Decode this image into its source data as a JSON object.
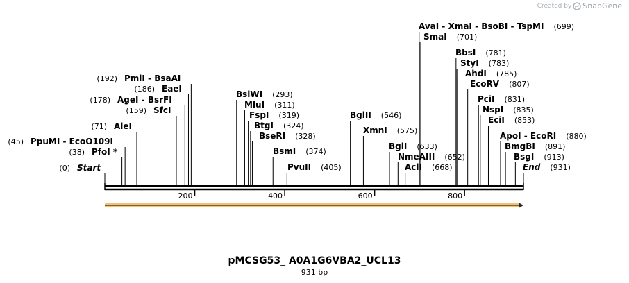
{
  "watermark": {
    "created_by": "Created by",
    "brand": "SnapGene"
  },
  "plasmid": {
    "name": "pMCSG53_ A0A1G6VBA2_UCL13",
    "length_label": "931 bp",
    "length": 931
  },
  "axis": {
    "ticks": [
      "200",
      "400",
      "600",
      "800"
    ],
    "tick_values": [
      200,
      400,
      600,
      800
    ]
  },
  "feature_arrow": {
    "start": 1,
    "end": 931,
    "color": "#f5c070",
    "direction": "forward"
  },
  "sites": [
    {
      "name": "Start",
      "pos": "(0)",
      "value": 0,
      "italic": true,
      "label_side": "right"
    },
    {
      "name": "PfoI *",
      "pos": "(38)",
      "value": 38,
      "label_side": "right"
    },
    {
      "name": "PpuMI  - EcoO109I",
      "pos": "(45)",
      "value": 45,
      "label_side": "right"
    },
    {
      "name": "AleI",
      "pos": "(71)",
      "value": 71,
      "label_side": "right"
    },
    {
      "name": "SfcI",
      "pos": "(159)",
      "value": 159,
      "label_side": "right"
    },
    {
      "name": "AgeI  - BsrFI",
      "pos": "(178)",
      "value": 178,
      "label_side": "right"
    },
    {
      "name": "EaeI",
      "pos": "(186)",
      "value": 186,
      "label_side": "right"
    },
    {
      "name": "PmlI  - BsaAI",
      "pos": "(192)",
      "value": 192,
      "label_side": "right"
    },
    {
      "name": "BsiWI",
      "pos": "(293)",
      "value": 293,
      "label_side": "left"
    },
    {
      "name": "MluI",
      "pos": "(311)",
      "value": 311,
      "label_side": "left"
    },
    {
      "name": "FspI",
      "pos": "(319)",
      "value": 319,
      "label_side": "left"
    },
    {
      "name": "BtgI",
      "pos": "(324)",
      "value": 324,
      "label_side": "left"
    },
    {
      "name": "BseRI",
      "pos": "(328)",
      "value": 328,
      "label_side": "left"
    },
    {
      "name": "BsmI",
      "pos": "(374)",
      "value": 374,
      "label_side": "left"
    },
    {
      "name": "PvuII",
      "pos": "(405)",
      "value": 405,
      "label_side": "left"
    },
    {
      "name": "BglII",
      "pos": "(546)",
      "value": 546,
      "label_side": "left"
    },
    {
      "name": "XmnI",
      "pos": "(575)",
      "value": 575,
      "label_side": "left"
    },
    {
      "name": "BglI",
      "pos": "(633)",
      "value": 633,
      "label_side": "left"
    },
    {
      "name": "NmeAIII",
      "pos": "(652)",
      "value": 652,
      "label_side": "left"
    },
    {
      "name": "AclI",
      "pos": "(668)",
      "value": 668,
      "label_side": "left"
    },
    {
      "name": "AvaI  - XmaI  - BsoBI  - TspMI",
      "pos": "(699)",
      "value": 699,
      "label_side": "left"
    },
    {
      "name": "SmaI",
      "pos": "(701)",
      "value": 701,
      "label_side": "left"
    },
    {
      "name": "BbsI",
      "pos": "(781)",
      "value": 781,
      "label_side": "left"
    },
    {
      "name": "StyI",
      "pos": "(783)",
      "value": 783,
      "label_side": "left"
    },
    {
      "name": "AhdI",
      "pos": "(785)",
      "value": 785,
      "label_side": "left"
    },
    {
      "name": "EcoRV",
      "pos": "(807)",
      "value": 807,
      "label_side": "left"
    },
    {
      "name": "PciI",
      "pos": "(831)",
      "value": 831,
      "label_side": "left"
    },
    {
      "name": "NspI",
      "pos": "(835)",
      "value": 835,
      "label_side": "left"
    },
    {
      "name": "EciI",
      "pos": "(853)",
      "value": 853,
      "label_side": "left"
    },
    {
      "name": "ApoI  - EcoRI",
      "pos": "(880)",
      "value": 880,
      "label_side": "left"
    },
    {
      "name": "BmgBI",
      "pos": "(891)",
      "value": 891,
      "label_side": "left"
    },
    {
      "name": "BsgI",
      "pos": "(913)",
      "value": 913,
      "label_side": "left"
    },
    {
      "name": "End",
      "pos": "(931)",
      "value": 931,
      "italic": true,
      "label_side": "left"
    }
  ]
}
